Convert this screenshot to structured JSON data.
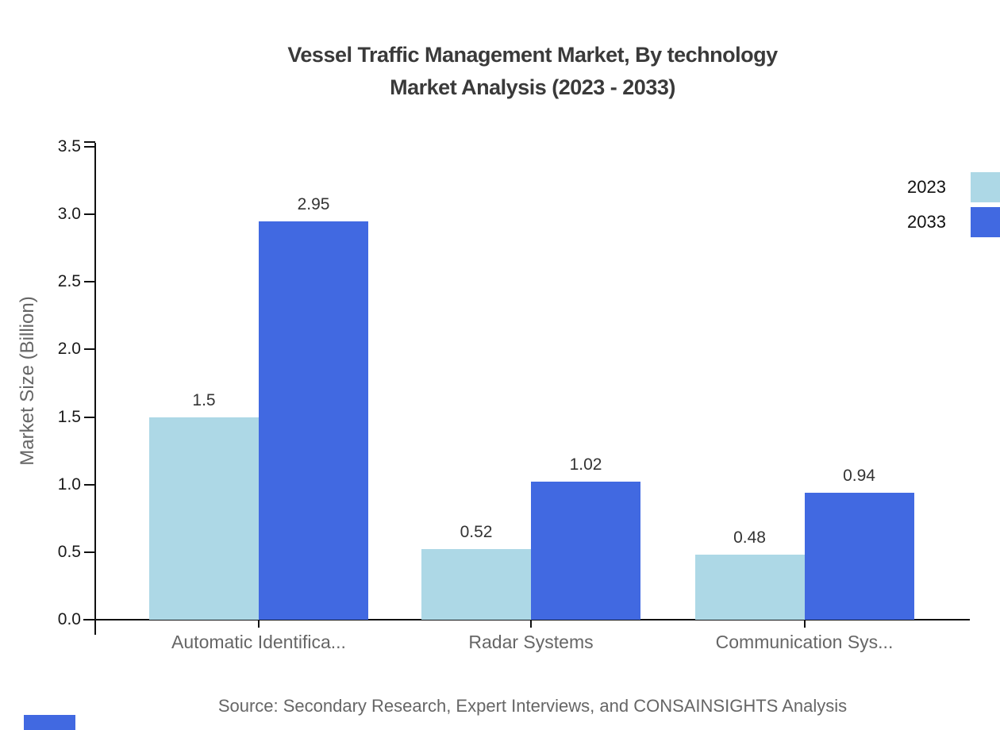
{
  "title": {
    "line1": "Vessel Traffic Management Market, By technology",
    "line2": "Market Analysis (2023 - 2033)"
  },
  "y_axis_label": "Market Size (Billion)",
  "source_note": "Source: Secondary Research, Expert Interviews, and CONSAINSIGHTS Analysis",
  "legend": {
    "position": "top-right",
    "entries": [
      "2023",
      "2033"
    ]
  },
  "colors": {
    "series_2023": "#ADD8E6",
    "series_2033": "#4169E1",
    "axis": "#111111",
    "title_text": "#3a3a3a",
    "muted_text": "#666666",
    "value_label_text": "#333333",
    "brand_mark": "#4169E1"
  },
  "chart_data": {
    "type": "bar",
    "title": "Vessel Traffic Management Market, By technology Market Analysis (2023 - 2033)",
    "categories": [
      "Automatic Identifica...",
      "Radar Systems",
      "Communication Sys..."
    ],
    "series": [
      {
        "name": "2023",
        "color": "#ADD8E6",
        "values": [
          1.5,
          0.52,
          0.48
        ],
        "labels": [
          "1.5",
          "0.52",
          "0.48"
        ]
      },
      {
        "name": "2033",
        "color": "#4169E1",
        "values": [
          2.95,
          1.02,
          0.94
        ],
        "labels": [
          "2.95",
          "1.02",
          "0.94"
        ]
      }
    ],
    "xlabel": "",
    "ylabel": "Market Size (Billion)",
    "ylim": [
      0,
      3.5
    ],
    "yticks": [
      "0.0",
      "0.5",
      "1.0",
      "1.5",
      "2.0",
      "2.5",
      "3.0",
      "3.5"
    ],
    "grid": false,
    "legend_position": "top-right",
    "bar_value_labels": true
  }
}
